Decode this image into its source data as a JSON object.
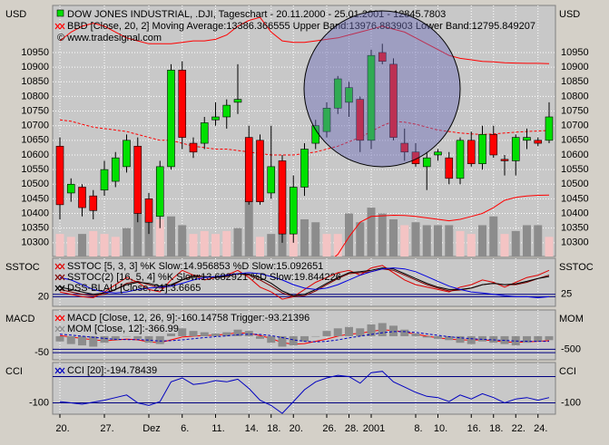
{
  "chart_data": [
    {
      "type": "candlestick",
      "ylabel": "USD",
      "y2label": "USD",
      "title": "DOW JONES INDUSTRIAL, .DJI, Tageschart - 20.11.2000 - 25.01.2001 - 12845.7803",
      "note": "© www.tradesignal.com",
      "categories": [
        "20.",
        null,
        null,
        null,
        "27.",
        null,
        null,
        null,
        "Dez",
        null,
        null,
        "6.",
        null,
        null,
        "11.",
        null,
        null,
        "14.",
        null,
        "18.",
        null,
        "20.",
        null,
        null,
        "26.",
        null,
        "28.",
        null,
        "2001",
        null,
        null,
        null,
        "8.",
        null,
        "10.",
        null,
        null,
        "16.",
        null,
        "18.",
        null,
        "22.",
        null,
        "24.",
        null
      ],
      "open": [
        10630,
        10470,
        10490,
        10460,
        10480,
        10510,
        10560,
        10630,
        10450,
        10390,
        10560,
        10890,
        10640,
        10640,
        10720,
        10730,
        10780,
        10660,
        10650,
        10470,
        10580,
        10330,
        10490,
        10640,
        10680,
        10760,
        10780,
        10790,
        10650,
        10950,
        10910,
        10640,
        10610,
        10560,
        10600,
        10590,
        10520,
        10650,
        10570,
        10670,
        10585,
        10580,
        10650,
        10650,
        10650
      ],
      "high": [
        10660,
        10520,
        10500,
        10480,
        10580,
        10610,
        10670,
        10660,
        10470,
        10580,
        10910,
        10920,
        10660,
        10730,
        10780,
        10790,
        10910,
        10700,
        10670,
        10700,
        10600,
        10530,
        10640,
        10720,
        10780,
        10870,
        10850,
        10800,
        10960,
        10980,
        10930,
        10690,
        10640,
        10610,
        10620,
        10610,
        10660,
        10680,
        10700,
        10700,
        10600,
        10670,
        10690,
        10660,
        10780
      ],
      "low": [
        10380,
        10440,
        10390,
        10380,
        10460,
        10490,
        10540,
        10370,
        10330,
        10350,
        10550,
        10620,
        10590,
        10620,
        10700,
        10690,
        10740,
        10430,
        10430,
        10450,
        10300,
        10300,
        10460,
        10620,
        10660,
        10740,
        10730,
        10610,
        10620,
        10910,
        10650,
        10580,
        10560,
        10480,
        10580,
        10500,
        10500,
        10560,
        10550,
        10590,
        10530,
        10530,
        10620,
        10630,
        10640
      ],
      "close": [
        10430,
        10500,
        10420,
        10410,
        10550,
        10590,
        10650,
        10400,
        10370,
        10560,
        10890,
        10660,
        10610,
        10710,
        10730,
        10770,
        10790,
        10440,
        10440,
        10560,
        10330,
        10490,
        10620,
        10700,
        10760,
        10860,
        10830,
        10650,
        10940,
        10920,
        10660,
        10610,
        10570,
        10590,
        10610,
        10520,
        10650,
        10570,
        10670,
        10600,
        10580,
        10660,
        10660,
        10640,
        10730
      ],
      "up_color": "#00e000",
      "down_color": "#ff0000",
      "volume": {
        "values": [
          10330,
          10320,
          10330,
          10340,
          10330,
          10320,
          10350,
          10400,
          10390,
          10380,
          10390,
          10360,
          10330,
          10340,
          10330,
          10340,
          10350,
          10450,
          10320,
          10330,
          10400,
          10330,
          10380,
          10370,
          10330,
          10330,
          10400,
          10370,
          10420,
          10400,
          10380,
          10360,
          10370,
          10360,
          10360,
          10360,
          10340,
          10330,
          10360,
          10390,
          10330,
          10340,
          10360,
          10360,
          10320
        ],
        "colors": [
          "#f4c4c4",
          "#f4c4c4",
          "#8c8c8c",
          "#f4c4c4",
          "#f4c4c4",
          "#f4c4c4",
          "#8c8c8c",
          "#8c8c8c",
          "#8c8c8c",
          "#f4c4c4",
          "#8c8c8c",
          "#8c8c8c",
          "#f4c4c4",
          "#f4c4c4",
          "#f4c4c4",
          "#f4c4c4",
          "#8c8c8c",
          "#8c8c8c",
          "#f4c4c4",
          "#8c8c8c",
          "#8c8c8c",
          "#f4c4c4",
          "#8c8c8c",
          "#8c8c8c",
          "#f4c4c4",
          "#f4c4c4",
          "#8c8c8c",
          "#8c8c8c",
          "#8c8c8c",
          "#8c8c8c",
          "#8c8c8c",
          "#f4c4c4",
          "#8c8c8c",
          "#8c8c8c",
          "#8c8c8c",
          "#8c8c8c",
          "#f4c4c4",
          "#f4c4c4",
          "#8c8c8c",
          "#8c8c8c",
          "#f4c4c4",
          "#8c8c8c",
          "#8c8c8c",
          "#8c8c8c",
          "#f4c4c4"
        ]
      },
      "bands": {
        "name": "BBD [Close, 20, 2] Moving Average:13386.366555 Upper Band:13976.883903 Lower Band:12795.849207",
        "color": "#ff0000",
        "upper": [
          10990,
          11020,
          11040,
          11050,
          11040,
          11020,
          11000,
          10990,
          10980,
          10980,
          10980,
          10985,
          10990,
          10990,
          10995,
          11010,
          11040,
          11060,
          11070,
          11020,
          10990,
          10985,
          10985,
          10990,
          10995,
          11000,
          11010,
          11020,
          11030,
          11040,
          11030,
          11020,
          11000,
          10980,
          10960,
          10940,
          10930,
          10925,
          10920,
          10918,
          10915,
          10914,
          10913,
          10913,
          10912
        ],
        "middle": [
          10720,
          10715,
          10705,
          10695,
          10690,
          10685,
          10680,
          10670,
          10660,
          10650,
          10650,
          10640,
          10630,
          10625,
          10620,
          10620,
          10615,
          10610,
          10605,
          10600,
          10600,
          10600,
          10605,
          10610,
          10620,
          10630,
          10645,
          10660,
          10680,
          10700,
          10715,
          10712,
          10705,
          10695,
          10685,
          10680,
          10675,
          10672,
          10670,
          10672,
          10675,
          10678,
          10680,
          10682,
          10684
        ],
        "lower": [
          10240,
          10220,
          10200,
          10180,
          10170,
          10160,
          10150,
          10140,
          10130,
          10120,
          10110,
          10100,
          10100,
          10110,
          10120,
          10130,
          10140,
          10150,
          10160,
          10170,
          10180,
          10190,
          10200,
          10210,
          10230,
          10260,
          10320,
          10370,
          10390,
          10392,
          10394,
          10393,
          10390,
          10385,
          10380,
          10375,
          10380,
          10390,
          10400,
          10420,
          10445,
          10455,
          10460,
          10462,
          10463
        ]
      },
      "ylim": [
        10253,
        11111
      ],
      "yticks": [
        10300,
        10350,
        10400,
        10450,
        10500,
        10550,
        10600,
        10650,
        10700,
        10750,
        10800,
        10850,
        10900,
        10950
      ],
      "grid": true
    },
    {
      "type": "line",
      "ylabel": "SSTOC",
      "y2label": "SSTOC",
      "legend": [
        "SSTOC [5, 3, 3] %K Slow:14.956853 %D Slow:15.092651",
        "SSTOC(2) [16, 5, 4] %K Slow:13.682921 %D Slow:19.844226",
        "DSS-BLAU [Close, 21]:3.6665"
      ],
      "series": [
        {
          "color": "#e00000",
          "values": [
            30,
            25,
            20,
            18,
            30,
            45,
            60,
            50,
            35,
            30,
            55,
            75,
            65,
            55,
            60,
            65,
            75,
            60,
            40,
            30,
            15,
            20,
            35,
            50,
            60,
            70,
            75,
            65,
            80,
            85,
            70,
            55,
            45,
            40,
            35,
            30,
            40,
            45,
            55,
            50,
            40,
            50,
            60,
            65,
            75
          ]
        },
        {
          "color": "#800000",
          "values": [
            35,
            30,
            25,
            22,
            25,
            35,
            48,
            52,
            45,
            38,
            42,
            55,
            65,
            62,
            60,
            62,
            68,
            65,
            55,
            42,
            28,
            20,
            22,
            32,
            45,
            58,
            68,
            70,
            72,
            78,
            75,
            65,
            55,
            45,
            38,
            32,
            34,
            38,
            45,
            48,
            45,
            45,
            50,
            58,
            65
          ]
        },
        {
          "color": "#000000",
          "values": [
            40,
            35,
            30,
            25,
            28,
            35,
            45,
            50,
            48,
            42,
            45,
            55,
            62,
            62,
            60,
            63,
            68,
            67,
            60,
            48,
            32,
            22,
            25,
            35,
            48,
            60,
            70,
            72,
            75,
            80,
            78,
            68,
            58,
            48,
            40,
            35,
            35,
            38,
            45,
            48,
            45,
            47,
            52,
            58,
            62
          ]
        },
        {
          "color": "#0000e0",
          "values": [
            60,
            55,
            45,
            35,
            30,
            28,
            30,
            35,
            38,
            40,
            42,
            48,
            55,
            60,
            62,
            65,
            68,
            70,
            68,
            62,
            55,
            45,
            38,
            35,
            38,
            45,
            55,
            65,
            72,
            78,
            80,
            78,
            72,
            62,
            52,
            42,
            35,
            30,
            28,
            25,
            22,
            20,
            20,
            18,
            20
          ]
        }
      ],
      "ylim": [
        0,
        100
      ],
      "yticks": [
        20
      ],
      "y2lim": [
        0,
        100
      ],
      "y2ticks": [
        25
      ]
    },
    {
      "type": "line",
      "ylabel": "MACD",
      "y2label": "MOM",
      "legend": [
        "MACD [Close, 12, 26, 9]:-160.14758 Trigger:-93.21396",
        "MOM [Close, 12]:-366.99"
      ],
      "series": [
        {
          "color": "#ff0000",
          "values": [
            10,
            5,
            0,
            -5,
            -8,
            -6,
            -2,
            -5,
            -12,
            -15,
            -5,
            5,
            8,
            10,
            12,
            15,
            20,
            18,
            10,
            0,
            -15,
            -20,
            -18,
            -10,
            -2,
            8,
            15,
            18,
            25,
            30,
            28,
            22,
            15,
            8,
            2,
            -2,
            -5,
            -6,
            -5,
            -8,
            -12,
            -14,
            -12,
            -10,
            -8
          ]
        },
        {
          "color": "#8c8c8c",
          "kind": "bar",
          "axis": "y2",
          "values": [
            -200,
            -300,
            -350,
            -400,
            -250,
            -150,
            0,
            -100,
            -250,
            -300,
            100,
            300,
            200,
            150,
            100,
            150,
            250,
            200,
            -100,
            -250,
            -400,
            -350,
            -200,
            0,
            200,
            300,
            350,
            300,
            450,
            500,
            400,
            250,
            100,
            -50,
            -100,
            -150,
            -250,
            -300,
            -200,
            -250,
            -300,
            -350,
            -250,
            -200,
            -150
          ]
        },
        {
          "color": "#0000c0",
          "dashed": true,
          "values": [
            15,
            12,
            8,
            4,
            0,
            -3,
            -4,
            -4,
            -6,
            -9,
            -8,
            -5,
            -1,
            3,
            6,
            9,
            13,
            15,
            14,
            10,
            3,
            -5,
            -10,
            -12,
            -10,
            -5,
            2,
            8,
            14,
            20,
            24,
            24,
            21,
            16,
            11,
            6,
            2,
            -1,
            -3,
            -5,
            -7,
            -9,
            -10,
            -10,
            -10
          ]
        }
      ],
      "ylim": [
        -75,
        100
      ],
      "yticks": [
        -50
      ],
      "y2lim": [
        -900,
        1000
      ],
      "y2ticks": [
        -500
      ]
    },
    {
      "type": "line",
      "ylabel": "CCI",
      "y2label": "CCI",
      "legend": [
        "CCI [20]:-194.78439"
      ],
      "series": [
        {
          "color": "#0000c0",
          "values": [
            -90,
            -100,
            -110,
            -95,
            -80,
            -60,
            -40,
            -100,
            -120,
            -90,
            60,
            90,
            40,
            50,
            70,
            60,
            80,
            10,
            -80,
            -120,
            -180,
            -90,
            0,
            60,
            90,
            110,
            100,
            50,
            130,
            140,
            60,
            20,
            -20,
            -50,
            -60,
            -90,
            -40,
            -70,
            -30,
            -60,
            -100,
            -70,
            -60,
            -80,
            -60
          ]
        }
      ],
      "levels": [
        100,
        -100
      ],
      "ylim": [
        -186,
        207
      ],
      "yticks": [
        -100
      ],
      "y2lim": [
        -186,
        207
      ],
      "y2ticks": [
        -100
      ]
    }
  ]
}
